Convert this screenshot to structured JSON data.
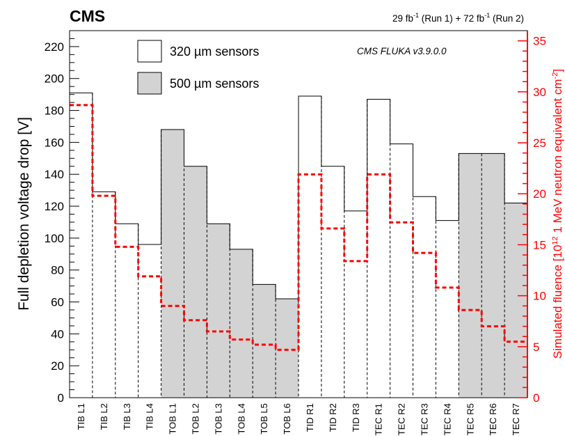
{
  "chart_data": {
    "type": "bar",
    "header_left": "CMS",
    "header_right": {
      "run1_value": "29 fb",
      "run1_sup": "-1",
      "run1_text": " (Run 1) + 72 fb",
      "run2_sup": "-1",
      "run2_text": " (Run 2)"
    },
    "annotation": "CMS FLUKA v3.9.0.0",
    "ylabel": "Full depletion voltage drop [V]",
    "ylabel2": {
      "prefix": "Simulated fluence [10",
      "sup": "12",
      "middle": " 1 MeV neutron equivalent cm",
      "sup2": "-2",
      "suffix": "]"
    },
    "ylim": [
      0,
      230
    ],
    "ylim2": [
      0,
      36
    ],
    "yticks": [
      0,
      20,
      40,
      60,
      80,
      100,
      120,
      140,
      160,
      180,
      200,
      220
    ],
    "yticks2": [
      0,
      5,
      10,
      15,
      20,
      25,
      30,
      35
    ],
    "legend": [
      {
        "label": "320 µm sensors",
        "fill": "#ffffff"
      },
      {
        "label": "500 µm sensors",
        "fill": "#d3d3d3"
      }
    ],
    "categories": [
      "TIB L1",
      "TIB L2",
      "TIB L3",
      "TIB L4",
      "TOB L1",
      "TOB L2",
      "TOB L3",
      "TOB L4",
      "TOB L5",
      "TOB L6",
      "TID R1",
      "TID R2",
      "TID R3",
      "TEC R1",
      "TEC R2",
      "TEC R3",
      "TEC R4",
      "TEC R5",
      "TEC R6",
      "TEC R7"
    ],
    "sensor": [
      "320",
      "320",
      "320",
      "320",
      "500",
      "500",
      "500",
      "500",
      "500",
      "500",
      "320",
      "320",
      "320",
      "320",
      "320",
      "320",
      "320",
      "500",
      "500",
      "500"
    ],
    "series": [
      {
        "axis": "left",
        "values": [
          191,
          129,
          109,
          96,
          168,
          145,
          109,
          93,
          71,
          62,
          189,
          145,
          117,
          187,
          159,
          126,
          111,
          153,
          153,
          122
        ]
      },
      {
        "axis": "right",
        "values": [
          28.7,
          19.8,
          14.8,
          11.9,
          9.0,
          7.6,
          6.5,
          5.7,
          5.2,
          4.7,
          21.9,
          16.6,
          13.4,
          21.9,
          17.2,
          14.2,
          10.8,
          8.6,
          7.0,
          5.5
        ]
      }
    ],
    "colors": {
      "fill_320": "#ffffff",
      "fill_500": "#d3d3d3",
      "fluence": "#ff0000",
      "axis2": "#ff0000"
    }
  }
}
